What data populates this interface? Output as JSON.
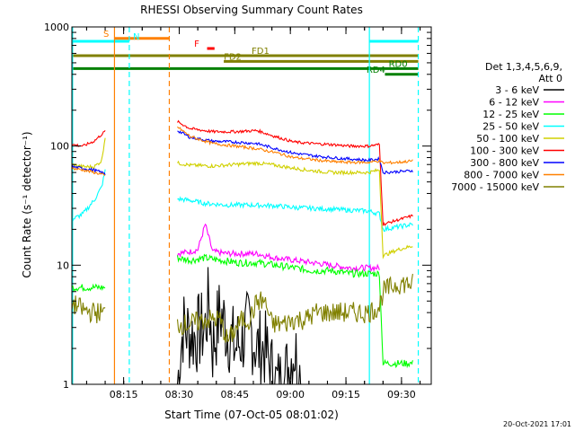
{
  "chart_data": {
    "type": "line",
    "title": "RHESSI Observing Summary Count Rates",
    "xlabel": "Start Time (07-Oct-05 08:01:02)",
    "ylabel": "Count Rate (s⁻¹ detector⁻¹)",
    "x_unit": "minutes since 08:01:02",
    "xlim": [
      0,
      97
    ],
    "ylim": [
      1,
      1000
    ],
    "yscale": "log",
    "x_ticks": [
      {
        "value": 13.97,
        "label": "08:15"
      },
      {
        "value": 28.97,
        "label": "08:30"
      },
      {
        "value": 43.97,
        "label": "08:45"
      },
      {
        "value": 58.97,
        "label": "09:00"
      },
      {
        "value": 73.97,
        "label": "09:15"
      },
      {
        "value": 88.97,
        "label": "09:30"
      }
    ],
    "y_ticks": [
      {
        "value": 1,
        "label": "1"
      },
      {
        "value": 10,
        "label": "10"
      },
      {
        "value": 100,
        "label": "100"
      },
      {
        "value": 1000,
        "label": "1000"
      }
    ],
    "legend_header": [
      "Det 1,3,4,5,6,9,",
      "Att 0"
    ],
    "legend_position": "right",
    "series": [
      {
        "name": "3 - 6 keV",
        "color": "#000000",
        "points": [
          [
            28.5,
            1.0
          ],
          [
            30,
            3.0
          ],
          [
            33,
            2.5
          ],
          [
            36,
            3.0
          ],
          [
            37,
            5.0
          ],
          [
            38,
            2.0
          ],
          [
            40,
            4.0
          ],
          [
            44,
            2.0
          ],
          [
            48,
            3.0
          ],
          [
            50,
            2.0
          ],
          [
            52,
            2.0
          ],
          [
            55,
            1.0
          ],
          [
            57,
            1.0
          ],
          [
            60,
            2.0
          ],
          [
            62,
            1.0
          ]
        ]
      },
      {
        "name": "6 - 12 keV",
        "color": "#ff00ff",
        "points": [
          [
            28.5,
            12.5
          ],
          [
            32,
            13.0
          ],
          [
            34,
            13.5
          ],
          [
            36,
            22.0
          ],
          [
            38,
            13.0
          ],
          [
            42,
            12.5
          ],
          [
            46,
            12.5
          ],
          [
            50,
            12.5
          ],
          [
            55,
            11.5
          ],
          [
            60,
            11.0
          ],
          [
            65,
            10.5
          ],
          [
            70,
            10.0
          ],
          [
            75,
            9.5
          ],
          [
            83,
            9.5
          ]
        ]
      },
      {
        "name": "12 - 25 keV",
        "color": "#00ff00",
        "points": [
          [
            0,
            6.5
          ],
          [
            9,
            6.5
          ],
          [
            28.5,
            11.5
          ],
          [
            32,
            11.0
          ],
          [
            36,
            11.5
          ],
          [
            40,
            11.0
          ],
          [
            45,
            10.5
          ],
          [
            50,
            10.5
          ],
          [
            55,
            10.0
          ],
          [
            60,
            9.5
          ],
          [
            65,
            9.0
          ],
          [
            70,
            9.0
          ],
          [
            75,
            8.5
          ],
          [
            83,
            8.5
          ],
          [
            84,
            1.5
          ],
          [
            92,
            1.5
          ]
        ]
      },
      {
        "name": "25 - 50 keV",
        "color": "#00ffff",
        "points": [
          [
            0,
            24.0
          ],
          [
            3,
            27.0
          ],
          [
            6,
            35.0
          ],
          [
            8,
            45.0
          ],
          [
            9,
            62.0
          ],
          [
            28.5,
            36.0
          ],
          [
            32,
            35.0
          ],
          [
            36,
            33.0
          ],
          [
            42,
            32.0
          ],
          [
            48,
            32.0
          ],
          [
            55,
            31.5
          ],
          [
            60,
            30.5
          ],
          [
            65,
            30.0
          ],
          [
            70,
            29.5
          ],
          [
            75,
            29.0
          ],
          [
            80,
            28.5
          ],
          [
            83,
            27.0
          ],
          [
            84,
            20.0
          ],
          [
            88,
            21.0
          ],
          [
            92,
            22.0
          ]
        ]
      },
      {
        "name": "50 - 100 keV",
        "color": "#d0d000",
        "points": [
          [
            0,
            70.0
          ],
          [
            3,
            67.0
          ],
          [
            6,
            67.0
          ],
          [
            8,
            75.0
          ],
          [
            9,
            120.0
          ],
          [
            28.5,
            72.0
          ],
          [
            32,
            69.0
          ],
          [
            38,
            68.0
          ],
          [
            44,
            70.0
          ],
          [
            50,
            72.0
          ],
          [
            55,
            69.0
          ],
          [
            60,
            65.0
          ],
          [
            65,
            62.0
          ],
          [
            70,
            60.0
          ],
          [
            75,
            60.0
          ],
          [
            80,
            60.0
          ],
          [
            83,
            63.0
          ],
          [
            84,
            12.0
          ],
          [
            88,
            13.5
          ],
          [
            92,
            14.5
          ]
        ]
      },
      {
        "name": "100 - 300 keV",
        "color": "#ff0000",
        "points": [
          [
            0,
            103.0
          ],
          [
            3,
            100.0
          ],
          [
            6,
            110.0
          ],
          [
            8,
            125.0
          ],
          [
            9,
            133.0
          ],
          [
            28.5,
            160.0
          ],
          [
            32,
            140.0
          ],
          [
            38,
            132.0
          ],
          [
            44,
            132.0
          ],
          [
            50,
            135.0
          ],
          [
            55,
            120.0
          ],
          [
            60,
            108.0
          ],
          [
            65,
            105.0
          ],
          [
            70,
            103.0
          ],
          [
            75,
            100.0
          ],
          [
            80,
            100.0
          ],
          [
            83,
            103.0
          ],
          [
            84,
            22.0
          ],
          [
            88,
            24.0
          ],
          [
            92,
            26.0
          ]
        ]
      },
      {
        "name": "300 - 800 keV",
        "color": "#0000ff",
        "points": [
          [
            0,
            67.0
          ],
          [
            3,
            65.0
          ],
          [
            6,
            63.0
          ],
          [
            8,
            60.0
          ],
          [
            9,
            58.0
          ],
          [
            28.5,
            135.0
          ],
          [
            32,
            118.0
          ],
          [
            38,
            110.0
          ],
          [
            44,
            108.0
          ],
          [
            50,
            105.0
          ],
          [
            55,
            95.0
          ],
          [
            60,
            87.0
          ],
          [
            65,
            83.0
          ],
          [
            70,
            80.0
          ],
          [
            75,
            78.0
          ],
          [
            80,
            76.0
          ],
          [
            83,
            78.0
          ],
          [
            84,
            60.0
          ],
          [
            88,
            61.0
          ],
          [
            92,
            62.0
          ]
        ]
      },
      {
        "name": "800 - 7000 keV",
        "color": "#ff8000",
        "points": [
          [
            0,
            65.0
          ],
          [
            3,
            63.0
          ],
          [
            6,
            60.0
          ],
          [
            8,
            58.0
          ],
          [
            9,
            56.0
          ],
          [
            28.5,
            145.0
          ],
          [
            32,
            120.0
          ],
          [
            38,
            105.0
          ],
          [
            44,
            100.0
          ],
          [
            50,
            95.0
          ],
          [
            55,
            88.0
          ],
          [
            60,
            80.0
          ],
          [
            65,
            77.0
          ],
          [
            70,
            74.0
          ],
          [
            75,
            73.0
          ],
          [
            80,
            73.0
          ],
          [
            83,
            75.0
          ],
          [
            84,
            72.0
          ],
          [
            88,
            73.0
          ],
          [
            92,
            75.0
          ]
        ]
      },
      {
        "name": "7000 - 15000 keV",
        "color": "#808000",
        "points": [
          [
            0,
            4.8
          ],
          [
            3,
            4.2
          ],
          [
            6,
            4.0
          ],
          [
            9,
            4.0
          ],
          [
            28.5,
            3.2
          ],
          [
            32,
            3.2
          ],
          [
            36,
            3.5
          ],
          [
            40,
            3.5
          ],
          [
            42,
            2.3
          ],
          [
            46,
            3.5
          ],
          [
            48,
            3.5
          ],
          [
            50,
            5.0
          ],
          [
            52,
            5.0
          ],
          [
            54,
            3.2
          ],
          [
            57,
            3.2
          ],
          [
            60,
            3.5
          ],
          [
            63,
            3.5
          ],
          [
            66,
            4.0
          ],
          [
            70,
            4.0
          ],
          [
            75,
            4.0
          ],
          [
            80,
            4.0
          ],
          [
            83,
            4.5
          ],
          [
            84,
            6.0
          ],
          [
            88,
            7.0
          ],
          [
            92,
            7.0
          ]
        ]
      }
    ],
    "vlines": [
      {
        "x": 0.2,
        "color": "#00ffff",
        "style": "solid"
      },
      {
        "x": 11.5,
        "color": "#ff8000",
        "style": "solid"
      },
      {
        "x": 15.5,
        "color": "#00ffff",
        "style": "dash"
      },
      {
        "x": 26.3,
        "color": "#ff8000",
        "style": "dash"
      },
      {
        "x": 80.3,
        "color": "#00ffff",
        "style": "solid"
      },
      {
        "x": 93.5,
        "color": "#00ffff",
        "style": "dash"
      }
    ],
    "flag_bars": [
      {
        "label": "S",
        "color": "#ff8000",
        "x0": 11.5,
        "x1": 26.3,
        "y": 1.6,
        "label_x": 8.5
      },
      {
        "label": "N",
        "color": "#00ffff",
        "x0": 0.2,
        "x1": 15.5,
        "y": 2.0,
        "label_x": 16.5
      },
      {
        "label": "N",
        "color": "#00ffff",
        "x0": 80.3,
        "x1": 93.5,
        "y": 2.0,
        "label_x": null
      },
      {
        "label": "F",
        "color": "#ff0000",
        "x0": 36.5,
        "x1": 38.5,
        "y": 3.0,
        "label_x": 33.0
      },
      {
        "label": "FD1",
        "color": "#808000",
        "x0": 0.2,
        "x1": 93.5,
        "y": 4.0,
        "label_x": 48.5
      },
      {
        "label": "FD2",
        "color": "#808000",
        "x0": 41.0,
        "x1": 93.5,
        "y": 4.8,
        "label_x": 41.0
      },
      {
        "label": "RD0",
        "color": "#008000",
        "x0": 0.2,
        "x1": 93.5,
        "y": 5.8,
        "label_x": 85.5
      },
      {
        "label": "RD4",
        "color": "#008000",
        "x0": 84.5,
        "x1": 93.5,
        "y": 6.6,
        "label_x": 79.5
      }
    ]
  },
  "footer_timestamp": "20-Oct-2021 17:01"
}
